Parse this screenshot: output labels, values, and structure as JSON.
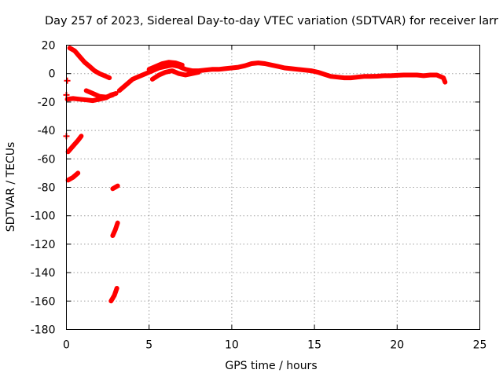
{
  "chart_data": {
    "type": "scatter",
    "title": "Day 257 of 2023, Sidereal Day-to-day VTEC variation (SDTVAR) for receiver larr",
    "xlabel": "GPS time / hours",
    "ylabel": "SDTVAR / TECUs",
    "xlim": [
      0,
      25
    ],
    "ylim": [
      -180,
      20
    ],
    "xticks": [
      0,
      5,
      10,
      15,
      20,
      25
    ],
    "yticks": [
      20,
      0,
      -20,
      -40,
      -60,
      -80,
      -100,
      -120,
      -140,
      -160,
      -180
    ],
    "grid": true,
    "color": "#ff0000",
    "series": [
      {
        "name": "main-trace",
        "points": [
          [
            3.2,
            -12
          ],
          [
            3.6,
            -8
          ],
          [
            4,
            -4
          ],
          [
            4.4,
            -2
          ],
          [
            4.8,
            0
          ],
          [
            5.2,
            2
          ],
          [
            5.6,
            4
          ],
          [
            6,
            5
          ],
          [
            6.4,
            6
          ],
          [
            6.8,
            5
          ],
          [
            7.2,
            3
          ],
          [
            7.6,
            2
          ],
          [
            8,
            2
          ],
          [
            8.4,
            2.5
          ],
          [
            8.8,
            3
          ],
          [
            9.2,
            3
          ],
          [
            9.6,
            3.5
          ],
          [
            10,
            4
          ],
          [
            10.4,
            4.5
          ],
          [
            10.8,
            5.5
          ],
          [
            11.2,
            7
          ],
          [
            11.6,
            7.5
          ],
          [
            12,
            7
          ],
          [
            12.4,
            6
          ],
          [
            12.8,
            5
          ],
          [
            13.2,
            4
          ],
          [
            13.6,
            3.5
          ],
          [
            14,
            3
          ],
          [
            14.4,
            2.5
          ],
          [
            14.8,
            2
          ],
          [
            15.2,
            1
          ],
          [
            15.6,
            -0.5
          ],
          [
            16,
            -2
          ],
          [
            16.4,
            -2.5
          ],
          [
            16.8,
            -3
          ],
          [
            17.2,
            -3
          ],
          [
            17.6,
            -2.5
          ],
          [
            18,
            -2
          ],
          [
            18.4,
            -2
          ],
          [
            18.8,
            -1.8
          ],
          [
            19.2,
            -1.5
          ],
          [
            19.6,
            -1.5
          ],
          [
            20,
            -1.2
          ],
          [
            20.4,
            -1
          ],
          [
            20.8,
            -1
          ],
          [
            21.2,
            -1
          ],
          [
            21.6,
            -1.5
          ],
          [
            22,
            -1
          ],
          [
            22.4,
            -1
          ],
          [
            22.8,
            -3
          ],
          [
            22.9,
            -6
          ]
        ]
      },
      {
        "name": "lower-branch",
        "points": [
          [
            5.2,
            -4
          ],
          [
            5.6,
            -1
          ],
          [
            6,
            1
          ],
          [
            6.4,
            2
          ],
          [
            6.8,
            0
          ],
          [
            7.2,
            -1
          ],
          [
            7.6,
            0
          ],
          [
            8,
            1
          ]
        ]
      },
      {
        "name": "upper-branch",
        "points": [
          [
            5,
            3
          ],
          [
            5.4,
            5
          ],
          [
            5.8,
            7
          ],
          [
            6.2,
            8
          ],
          [
            6.6,
            7.5
          ],
          [
            7,
            6
          ]
        ]
      },
      {
        "name": "early-arc",
        "points": [
          [
            0.2,
            18
          ],
          [
            0.5,
            16
          ],
          [
            0.8,
            12
          ],
          [
            1.1,
            8
          ],
          [
            1.4,
            5
          ],
          [
            1.7,
            2
          ],
          [
            2,
            0
          ],
          [
            2.4,
            -2
          ],
          [
            2.6,
            -3
          ]
        ]
      },
      {
        "name": "early-flat",
        "points": [
          [
            0.05,
            -18
          ],
          [
            0.4,
            -17.5
          ],
          [
            0.8,
            -18
          ],
          [
            1.2,
            -18.5
          ],
          [
            1.6,
            -19
          ],
          [
            2,
            -18
          ],
          [
            2.4,
            -17
          ],
          [
            2.7,
            -15
          ],
          [
            3,
            -14
          ]
        ]
      },
      {
        "name": "early-dip",
        "points": [
          [
            1.2,
            -12
          ],
          [
            1.6,
            -14
          ],
          [
            2,
            -16
          ],
          [
            2.4,
            -16.5
          ],
          [
            2.8,
            -15
          ]
        ]
      },
      {
        "name": "descent-a",
        "points": [
          [
            0.1,
            -55
          ],
          [
            0.4,
            -51
          ],
          [
            0.7,
            -47
          ],
          [
            0.9,
            -44
          ]
        ]
      },
      {
        "name": "descent-b",
        "points": [
          [
            0.1,
            -75
          ],
          [
            0.4,
            -73
          ],
          [
            0.7,
            -70
          ]
        ]
      },
      {
        "name": "seg-80",
        "points": [
          [
            2.8,
            -81
          ],
          [
            3.1,
            -79
          ]
        ]
      },
      {
        "name": "seg-110",
        "points": [
          [
            2.8,
            -114
          ],
          [
            2.95,
            -110
          ],
          [
            3.1,
            -105
          ]
        ]
      },
      {
        "name": "seg-155",
        "points": [
          [
            2.7,
            -160
          ],
          [
            2.9,
            -156
          ],
          [
            3.05,
            -151
          ]
        ]
      },
      {
        "name": "marker-a",
        "points": [
          [
            0.05,
            -5
          ]
        ]
      },
      {
        "name": "marker-b",
        "points": [
          [
            0,
            -44
          ]
        ]
      },
      {
        "name": "marker-c",
        "points": [
          [
            0,
            -15
          ]
        ]
      }
    ]
  }
}
